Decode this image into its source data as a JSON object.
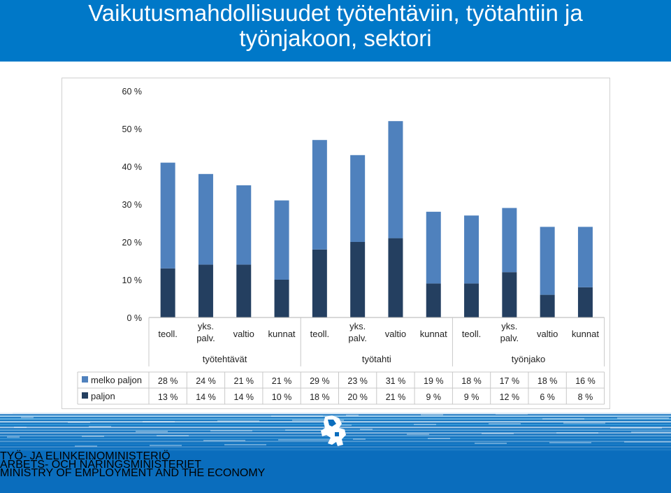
{
  "title": {
    "line1": "Vaikutusmahdollisuudet työtehtäviin, työtahtiin ja",
    "line2": "työnjakoon, sektori"
  },
  "colors": {
    "header_bg": "#0078c8",
    "series_light": "#4f81bd",
    "series_dark": "#243f60",
    "footer_bg": "#0a6dbd"
  },
  "chart_data": {
    "type": "bar",
    "stacked": true,
    "categories": [
      [
        "teoll."
      ],
      [
        "yks.",
        "palv."
      ],
      [
        "valtio"
      ],
      [
        "kunnat"
      ],
      [
        "teoll."
      ],
      [
        "yks.",
        "palv."
      ],
      [
        "valtio"
      ],
      [
        "kunnat"
      ],
      [
        "teoll."
      ],
      [
        "yks.",
        "palv."
      ],
      [
        "valtio"
      ],
      [
        "kunnat"
      ]
    ],
    "groups": [
      {
        "label": "työtehtävät",
        "start": 0,
        "end": 3
      },
      {
        "label": "työtahti",
        "start": 4,
        "end": 7
      },
      {
        "label": "työnjako",
        "start": 8,
        "end": 11
      }
    ],
    "series": [
      {
        "name": "paljon",
        "color": "#243f60",
        "values": [
          13,
          14,
          14,
          10,
          18,
          20,
          21,
          9,
          9,
          12,
          6,
          8
        ]
      },
      {
        "name": "melko paljon",
        "color": "#4f81bd",
        "values": [
          28,
          24,
          21,
          21,
          29,
          23,
          31,
          19,
          18,
          17,
          18,
          16
        ]
      }
    ],
    "table_rows": [
      {
        "name": "melko paljon",
        "color": "#4f81bd",
        "cells": [
          "28 %",
          "24 %",
          "21 %",
          "21 %",
          "29 %",
          "23 %",
          "31 %",
          "19 %",
          "18 %",
          "17 %",
          "18 %",
          "16 %"
        ]
      },
      {
        "name": "paljon",
        "color": "#243f60",
        "cells": [
          "13 %",
          "14 %",
          "14 %",
          "10 %",
          "18 %",
          "20 %",
          "21 %",
          "9 %",
          "9 %",
          "12 %",
          "6 %",
          "8 %"
        ]
      }
    ],
    "yticks": [
      "0 %",
      "10 %",
      "20 %",
      "30 %",
      "40 %",
      "50 %",
      "60 %"
    ],
    "ylim": [
      0,
      60
    ],
    "grid": false,
    "legend": "data-table"
  },
  "footer": {
    "line1": "TYÖ- JA ELINKEINOMINISTERIÖ",
    "line2": "ARBETS- OCH NÄRINGSMINISTERIET",
    "line3": "MINISTRY OF EMPLOYMENT AND THE ECONOMY"
  }
}
